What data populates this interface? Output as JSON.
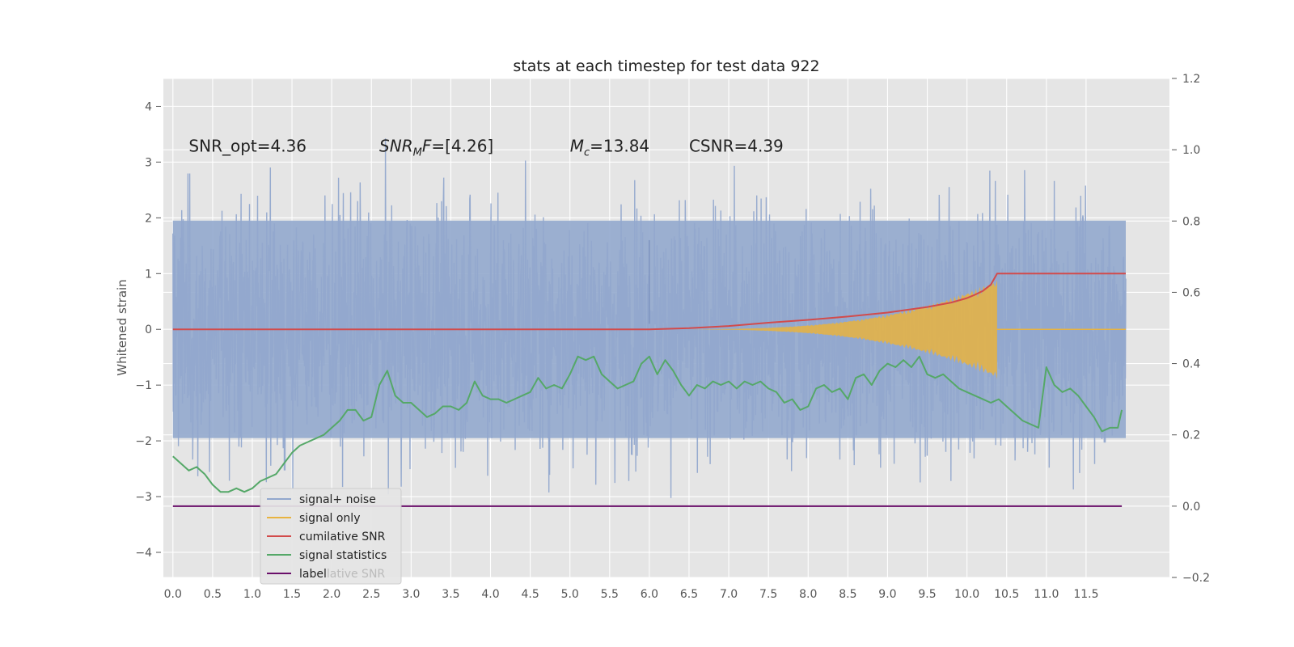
{
  "chart_data": {
    "type": "line",
    "title": "stats at each timestep for test data 922",
    "ylabel": "Whitened strain",
    "xlim": [
      -0.12,
      12.55
    ],
    "ylim": [
      -4.45,
      4.5
    ],
    "y2lim": [
      -0.2,
      1.2
    ],
    "xticks": [
      0.0,
      0.5,
      1.0,
      1.5,
      2.0,
      2.5,
      3.0,
      3.5,
      4.0,
      4.5,
      5.0,
      5.5,
      6.0,
      6.5,
      7.0,
      7.5,
      8.0,
      8.5,
      9.0,
      9.5,
      10.0,
      10.5,
      11.0,
      11.5
    ],
    "xtick_labels": [
      "0.0",
      "0.5",
      "1.0",
      "1.5",
      "2.0",
      "2.5",
      "3.0",
      "3.5",
      "4.0",
      "4.5",
      "5.0",
      "5.5",
      "6.0",
      "6.5",
      "7.0",
      "7.5",
      "8.0",
      "8.5",
      "9.0",
      "9.5",
      "10.0",
      "10.5",
      "11.0",
      "11.5"
    ],
    "yticks": [
      -4,
      -3,
      -2,
      -1,
      0,
      1,
      2,
      3,
      4
    ],
    "ytick_labels": [
      "−4",
      "−3",
      "−2",
      "−1",
      "0",
      "1",
      "2",
      "3",
      "4"
    ],
    "y2ticks": [
      -0.2,
      0.0,
      0.2,
      0.4,
      0.6,
      0.8,
      1.0,
      1.2
    ],
    "y2tick_labels": [
      "−0.2",
      "0.0",
      "0.2",
      "0.4",
      "0.6",
      "0.8",
      "1.0",
      "1.2"
    ],
    "grid": true,
    "legend_position": "lower-left",
    "annotations": [
      {
        "text": "SNR_opt=4.36",
        "x": 0.2,
        "y": 3.3
      },
      {
        "text": "SNR_MF=[4.26]",
        "x": 2.6,
        "y": 3.3,
        "math": true,
        "base": "SNR",
        "sub": "M",
        "rest": "F=[4.26]"
      },
      {
        "text": "M_c=13.84",
        "x": 5.0,
        "y": 3.3,
        "math": true,
        "base": "M",
        "sub": "c",
        "rest": "=13.84"
      },
      {
        "text": "CSNR=4.39",
        "x": 6.5,
        "y": 3.3
      }
    ],
    "noise_range": [
      0.0,
      12.0
    ],
    "noise_amplitude": 1.8,
    "series": [
      {
        "name": "signal+ noise",
        "color": "#92a8cd",
        "axis": "left",
        "style": "noise"
      },
      {
        "name": "signal only",
        "color": "#e8b340",
        "axis": "left",
        "style": "chirp",
        "start": 6.0,
        "end": 10.38,
        "peak": 0.9
      },
      {
        "name": "cumilative SNR",
        "color": "#d24b4b",
        "axis": "left",
        "x": [
          0.0,
          6.0,
          6.5,
          7.0,
          7.5,
          8.0,
          8.5,
          9.0,
          9.5,
          9.8,
          10.0,
          10.1,
          10.2,
          10.3,
          10.38,
          10.5,
          12.0
        ],
        "values": [
          0.0,
          0.0,
          0.02,
          0.06,
          0.12,
          0.17,
          0.23,
          0.3,
          0.4,
          0.48,
          0.56,
          0.62,
          0.69,
          0.8,
          1.0,
          1.0,
          1.0
        ]
      },
      {
        "name": "signal statistics",
        "color": "#55a868",
        "axis": "right",
        "x": [
          0.0,
          0.1,
          0.2,
          0.3,
          0.4,
          0.5,
          0.6,
          0.7,
          0.8,
          0.9,
          1.0,
          1.1,
          1.2,
          1.3,
          1.4,
          1.5,
          1.6,
          1.7,
          1.8,
          1.9,
          2.0,
          2.1,
          2.2,
          2.3,
          2.4,
          2.5,
          2.6,
          2.7,
          2.8,
          2.9,
          3.0,
          3.1,
          3.2,
          3.3,
          3.4,
          3.5,
          3.6,
          3.7,
          3.8,
          3.9,
          4.0,
          4.1,
          4.2,
          4.3,
          4.4,
          4.5,
          4.6,
          4.7,
          4.8,
          4.9,
          5.0,
          5.1,
          5.2,
          5.3,
          5.4,
          5.5,
          5.6,
          5.7,
          5.8,
          5.9,
          6.0,
          6.1,
          6.2,
          6.3,
          6.4,
          6.5,
          6.6,
          6.7,
          6.8,
          6.9,
          7.0,
          7.1,
          7.2,
          7.3,
          7.4,
          7.5,
          7.6,
          7.7,
          7.8,
          7.9,
          8.0,
          8.1,
          8.2,
          8.3,
          8.4,
          8.5,
          8.6,
          8.7,
          8.8,
          8.9,
          9.0,
          9.1,
          9.2,
          9.3,
          9.4,
          9.5,
          9.6,
          9.7,
          9.8,
          9.9,
          10.0,
          10.1,
          10.2,
          10.3,
          10.4,
          10.5,
          10.6,
          10.7,
          10.8,
          10.9,
          11.0,
          11.1,
          11.2,
          11.3,
          11.4,
          11.5,
          11.6,
          11.7,
          11.8,
          11.9,
          11.95
        ],
        "values": [
          0.14,
          0.12,
          0.1,
          0.11,
          0.09,
          0.06,
          0.04,
          0.04,
          0.05,
          0.04,
          0.05,
          0.07,
          0.08,
          0.09,
          0.12,
          0.15,
          0.17,
          0.18,
          0.19,
          0.2,
          0.22,
          0.24,
          0.27,
          0.27,
          0.24,
          0.25,
          0.34,
          0.38,
          0.31,
          0.29,
          0.29,
          0.27,
          0.25,
          0.26,
          0.28,
          0.28,
          0.27,
          0.29,
          0.35,
          0.31,
          0.3,
          0.3,
          0.29,
          0.3,
          0.31,
          0.32,
          0.36,
          0.33,
          0.34,
          0.33,
          0.37,
          0.42,
          0.41,
          0.42,
          0.37,
          0.35,
          0.33,
          0.34,
          0.35,
          0.4,
          0.42,
          0.37,
          0.41,
          0.38,
          0.34,
          0.31,
          0.34,
          0.33,
          0.35,
          0.34,
          0.35,
          0.33,
          0.35,
          0.34,
          0.35,
          0.33,
          0.32,
          0.29,
          0.3,
          0.27,
          0.28,
          0.33,
          0.34,
          0.32,
          0.33,
          0.3,
          0.36,
          0.37,
          0.34,
          0.38,
          0.4,
          0.39,
          0.41,
          0.39,
          0.42,
          0.37,
          0.36,
          0.37,
          0.35,
          0.33,
          0.32,
          0.31,
          0.3,
          0.29,
          0.3,
          0.28,
          0.26,
          0.24,
          0.23,
          0.22,
          0.39,
          0.34,
          0.32,
          0.33,
          0.31,
          0.28,
          0.25,
          0.21,
          0.22,
          0.22,
          0.27
        ]
      },
      {
        "name": "label",
        "color": "#6a0f6a",
        "axis": "right",
        "x": [
          0.0,
          11.95
        ],
        "values": [
          0.0,
          0.0
        ]
      }
    ],
    "legend": [
      {
        "label": "signal+ noise",
        "color": "#92a8cd"
      },
      {
        "label": "signal only",
        "color": "#e8b340"
      },
      {
        "label": "cumilative SNR",
        "color": "#d24b4b"
      },
      {
        "label": "signal statistics",
        "color": "#55a868"
      },
      {
        "label": "label",
        "color": "#6a0f6a",
        "ghost": "lative SNR"
      }
    ]
  }
}
